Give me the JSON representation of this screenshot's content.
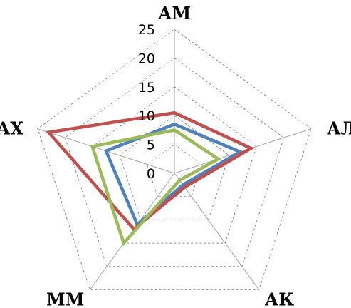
{
  "chart_data": {
    "type": "radar",
    "axes": [
      "АМ",
      "АЛ",
      "АК",
      "ММ",
      "АХ"
    ],
    "r_ticks": [
      "0",
      "5",
      "10",
      "15",
      "20",
      "25"
    ],
    "r_range": [
      0,
      25
    ],
    "grid": true,
    "legend": "none",
    "series": [
      {
        "color": "#4f81bd",
        "values": [
          8.5,
          12,
          2.5,
          11,
          12.5
        ]
      },
      {
        "color": "#c0504d",
        "values": [
          10.5,
          14,
          3,
          12,
          23
        ]
      },
      {
        "color": "#9bbb59",
        "values": [
          7.5,
          8,
          1.5,
          15,
          15
        ]
      }
    ]
  }
}
